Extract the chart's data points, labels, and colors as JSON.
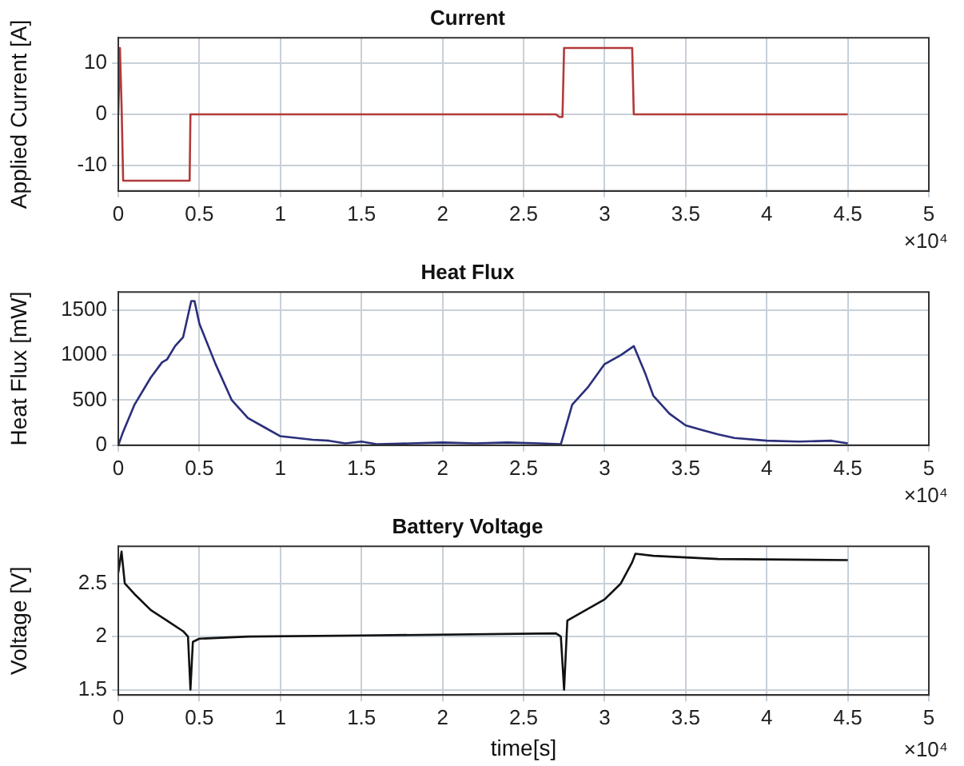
{
  "chart_data": [
    {
      "type": "line",
      "title": "Current",
      "ylabel": "Applied Current [A]",
      "annotations": [
        "×10⁴"
      ],
      "grid": true,
      "marker": "none",
      "xlim": [
        0,
        5
      ],
      "xticks": [
        0,
        0.5,
        1,
        1.5,
        2,
        2.5,
        3,
        3.5,
        4,
        4.5,
        5
      ],
      "ylim": [
        -15,
        15
      ],
      "yticks": [
        -10,
        0,
        10
      ],
      "x": [
        0,
        0.01,
        0.02,
        0.03,
        0.44,
        0.445,
        2.7,
        2.72,
        2.74,
        2.75,
        3.17,
        3.18,
        4.5
      ],
      "series": [
        {
          "color": "#b23a3a",
          "values": [
            0,
            13,
            2,
            -13,
            -13,
            0,
            0,
            -0.5,
            -0.5,
            13,
            13,
            0,
            0
          ]
        }
      ]
    },
    {
      "type": "line",
      "title": "Heat Flux",
      "ylabel": "Heat Flux [mW]",
      "annotations": [
        "×10⁴"
      ],
      "grid": true,
      "marker": "none",
      "xlim": [
        0,
        5
      ],
      "xticks": [
        0,
        0.5,
        1,
        1.5,
        2,
        2.5,
        3,
        3.5,
        4,
        4.5,
        5
      ],
      "ylim": [
        0,
        1700
      ],
      "yticks": [
        0,
        500,
        1000,
        1500
      ],
      "x": [
        0,
        0.03,
        0.1,
        0.2,
        0.27,
        0.3,
        0.35,
        0.4,
        0.45,
        0.47,
        0.5,
        0.6,
        0.7,
        0.8,
        0.9,
        1,
        1.1,
        1.2,
        1.3,
        1.4,
        1.5,
        1.6,
        1.8,
        2,
        2.2,
        2.4,
        2.6,
        2.73,
        2.8,
        2.9,
        3,
        3.1,
        3.18,
        3.25,
        3.3,
        3.4,
        3.5,
        3.6,
        3.7,
        3.8,
        4,
        4.2,
        4.4,
        4.5
      ],
      "series": [
        {
          "color": "#2a2f7a",
          "values": [
            0,
            150,
            450,
            750,
            920,
            950,
            1100,
            1200,
            1600,
            1600,
            1350,
            900,
            500,
            300,
            200,
            100,
            80,
            60,
            50,
            20,
            40,
            10,
            20,
            30,
            20,
            30,
            20,
            10,
            450,
            650,
            900,
            1000,
            1100,
            800,
            550,
            350,
            220,
            170,
            120,
            80,
            50,
            40,
            50,
            20
          ]
        }
      ]
    },
    {
      "type": "line",
      "title": "Battery Voltage",
      "xlabel": "time[s]",
      "ylabel": "Voltage [V]",
      "annotations": [
        "×10⁴"
      ],
      "grid": true,
      "marker": "none",
      "xlim": [
        0,
        5
      ],
      "xticks": [
        0,
        0.5,
        1,
        1.5,
        2,
        2.5,
        3,
        3.5,
        4,
        4.5,
        5
      ],
      "ylim": [
        1.45,
        2.85
      ],
      "yticks": [
        1.5,
        2,
        2.5
      ],
      "x": [
        0,
        0.02,
        0.04,
        0.1,
        0.2,
        0.3,
        0.4,
        0.43,
        0.445,
        0.46,
        0.5,
        0.8,
        1.5,
        2.7,
        2.73,
        2.75,
        2.77,
        2.85,
        3,
        3.1,
        3.17,
        3.19,
        3.3,
        3.7,
        4.5
      ],
      "series": [
        {
          "color": "#111111",
          "values": [
            2.6,
            2.8,
            2.5,
            2.4,
            2.25,
            2.15,
            2.05,
            2.0,
            1.5,
            1.95,
            1.98,
            2.0,
            2.01,
            2.03,
            2.0,
            1.5,
            2.15,
            2.22,
            2.35,
            2.5,
            2.7,
            2.78,
            2.76,
            2.73,
            2.72
          ]
        }
      ]
    }
  ]
}
